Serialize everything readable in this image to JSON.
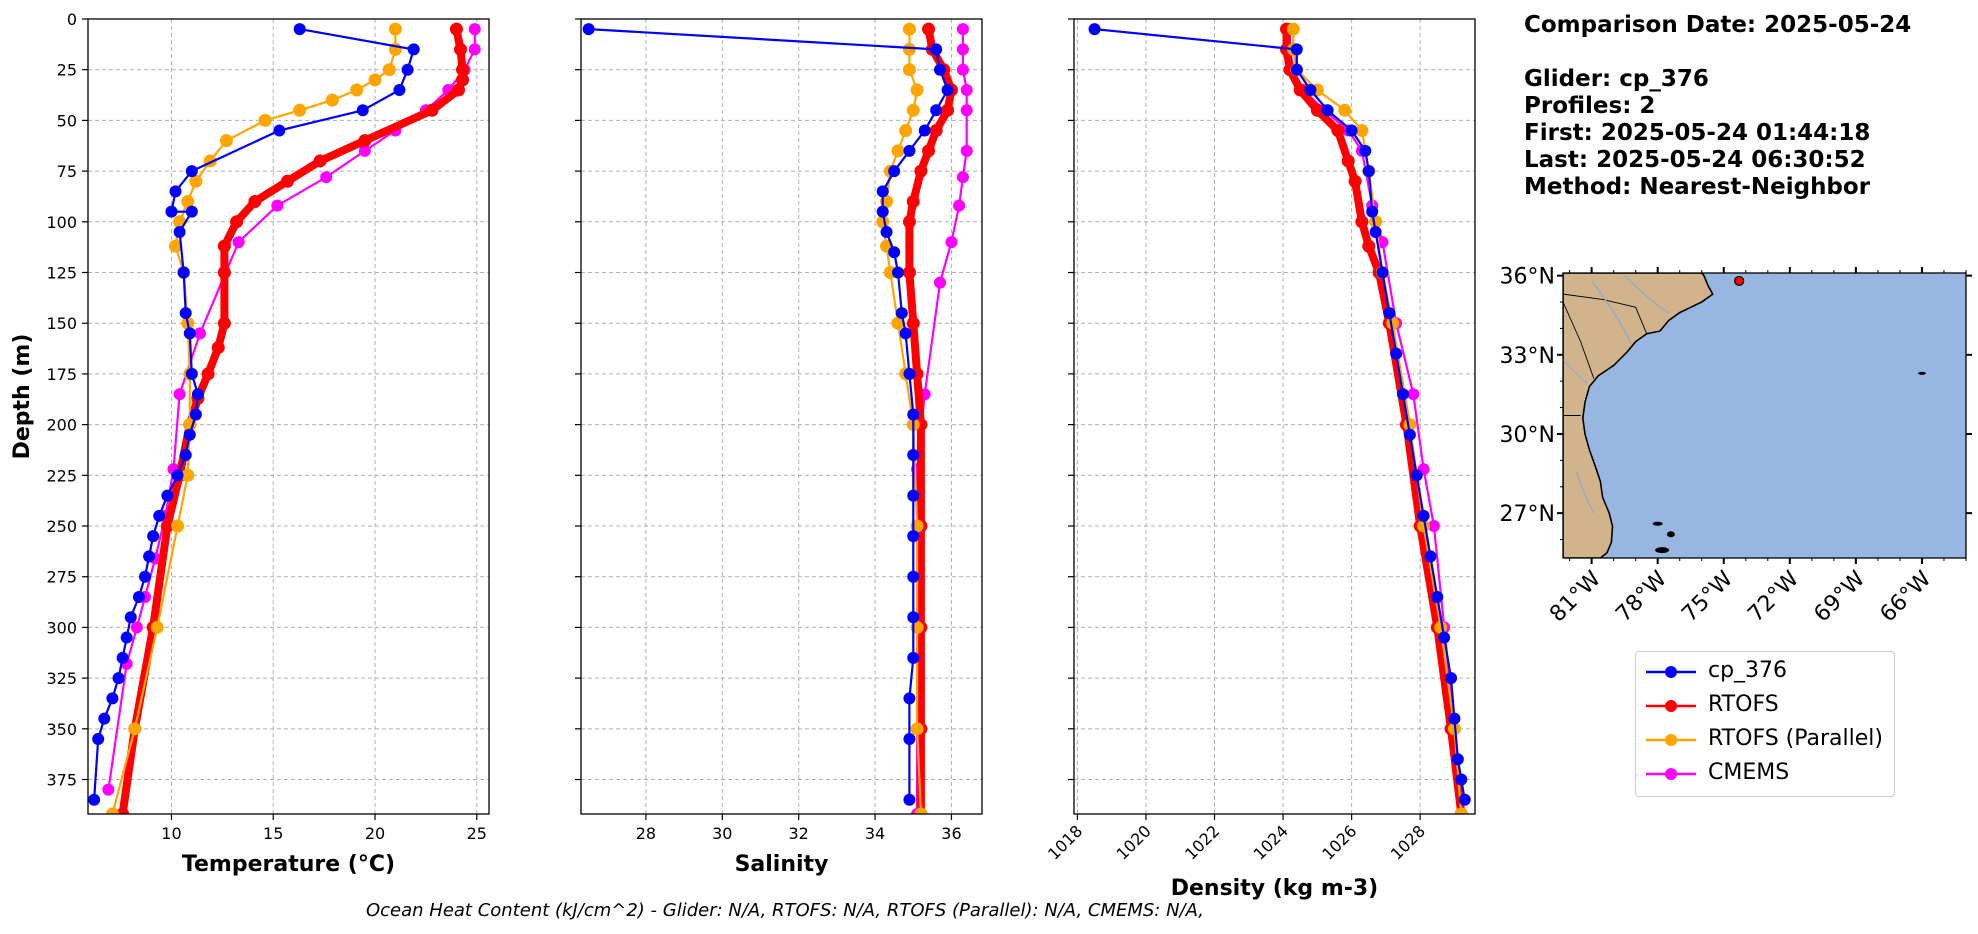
{
  "info": {
    "comparison_date": "Comparison Date: 2025-05-24",
    "glider": "Glider: cp_376",
    "profiles": "Profiles: 2",
    "first": "First: 2025-05-24 01:44:18",
    "last": "Last: 2025-05-24 06:30:52",
    "method": "Method: Nearest-Neighbor"
  },
  "footer": "Ocean Heat Content (kJ/cm^2) - Glider: N/A,  RTOFS: N/A,  RTOFS (Parallel): N/A,  CMEMS: N/A,",
  "legend": [
    {
      "name": "cp_376",
      "color": "#0000ff"
    },
    {
      "name": "RTOFS",
      "color": "#ff0000"
    },
    {
      "name": "RTOFS (Parallel)",
      "color": "#ffa500"
    },
    {
      "name": "CMEMS",
      "color": "#ff00ff"
    }
  ],
  "colors": {
    "glider": "#0000ff",
    "glider_raw": "#00ffff",
    "rtofs": "#ff0000",
    "rtofs_parallel": "#ffa500",
    "cmems": "#ff00ff",
    "land": "#d2b48c",
    "ocean": "#97b6e1"
  },
  "chart_data": [
    {
      "type": "line",
      "xlabel": "Temperature (°C)",
      "ylabel": "Depth (m)",
      "xlim": [
        5.9,
        25.6
      ],
      "ylim": [
        392,
        0
      ],
      "xticks": [
        10,
        15,
        20,
        25
      ],
      "yticks": [
        0,
        25,
        50,
        75,
        100,
        125,
        150,
        175,
        200,
        225,
        250,
        275,
        300,
        325,
        350,
        375
      ],
      "grid": true,
      "series": [
        {
          "name": "cp_376",
          "x": [
            16.3,
            21.9,
            21.6,
            21.2,
            19.4,
            15.3,
            11.0,
            10.2,
            10.0,
            11.0,
            10.4,
            10.6,
            10.7,
            10.9,
            11.0,
            11.3,
            11.2,
            10.9,
            10.7,
            10.3,
            9.8,
            9.4,
            9.1,
            8.9,
            8.7,
            8.4,
            8.0,
            7.8,
            7.6,
            7.4,
            7.1,
            6.7,
            6.4,
            6.2
          ],
          "y": [
            5,
            15,
            25,
            35,
            45,
            55,
            75,
            85,
            95,
            95,
            105,
            125,
            145,
            155,
            175,
            185,
            195,
            205,
            215,
            225,
            235,
            245,
            255,
            265,
            275,
            285,
            295,
            305,
            315,
            325,
            335,
            345,
            355,
            385
          ]
        },
        {
          "name": "RTOFS",
          "x": [
            24.0,
            24.2,
            24.3,
            24.3,
            24.1,
            22.8,
            19.5,
            17.3,
            15.7,
            14.1,
            13.2,
            12.6,
            12.6,
            12.6,
            12.3,
            11.8,
            11.3,
            10.9,
            10.4,
            9.8,
            9.1,
            8.2,
            7.6
          ],
          "y": [
            5,
            15,
            25,
            30,
            35,
            45,
            60,
            70,
            80,
            90,
            100,
            112,
            125,
            150,
            162,
            175,
            187,
            200,
            225,
            250,
            300,
            350,
            392
          ]
        },
        {
          "name": "RTOFS (Parallel)",
          "x": [
            21.0,
            21.0,
            20.7,
            20.0,
            19.1,
            17.9,
            16.3,
            14.6,
            12.7,
            11.9,
            11.2,
            10.8,
            10.4,
            10.2,
            10.6,
            10.8,
            10.9,
            10.9,
            10.8,
            10.3,
            9.3,
            8.2,
            7.1
          ],
          "y": [
            5,
            15,
            25,
            30,
            35,
            40,
            45,
            50,
            60,
            70,
            80,
            90,
            100,
            112,
            125,
            150,
            175,
            200,
            225,
            250,
            300,
            350,
            392
          ]
        },
        {
          "name": "CMEMS",
          "x": [
            24.9,
            24.9,
            24.4,
            23.6,
            22.5,
            21.0,
            19.5,
            17.6,
            15.2,
            13.3,
            11.4,
            10.4,
            10.1,
            9.7,
            9.2,
            8.7,
            8.3,
            7.8,
            6.9
          ],
          "y": [
            5,
            15,
            25,
            35,
            45,
            55,
            65,
            78,
            92,
            110,
            155,
            185,
            222,
            245,
            266,
            285,
            300,
            318,
            380
          ]
        }
      ]
    },
    {
      "type": "line",
      "xlabel": "Salinity",
      "xlim": [
        26.3,
        36.8
      ],
      "ylim": [
        392,
        0
      ],
      "xticks": [
        28,
        30,
        32,
        34,
        36
      ],
      "grid": true,
      "series": [
        {
          "name": "cp_376",
          "x": [
            26.5,
            35.6,
            35.7,
            35.9,
            35.6,
            35.3,
            34.9,
            34.5,
            34.2,
            34.2,
            34.3,
            34.5,
            34.6,
            34.7,
            34.8,
            34.9,
            35.0,
            35.0,
            35.0,
            35.0,
            35.0,
            35.0,
            35.0,
            34.9,
            34.9,
            34.9
          ],
          "y": [
            5,
            15,
            25,
            35,
            45,
            55,
            65,
            75,
            85,
            95,
            105,
            115,
            125,
            145,
            155,
            175,
            195,
            215,
            235,
            255,
            275,
            295,
            315,
            335,
            355,
            385
          ]
        },
        {
          "name": "RTOFS",
          "x": [
            35.4,
            35.5,
            35.8,
            36.0,
            35.9,
            35.6,
            35.4,
            35.2,
            35.0,
            34.9,
            34.9,
            35.0,
            35.1,
            35.2,
            35.2,
            35.2,
            35.2,
            35.2
          ],
          "y": [
            5,
            15,
            25,
            35,
            45,
            55,
            65,
            75,
            90,
            100,
            125,
            150,
            175,
            200,
            250,
            300,
            350,
            392
          ]
        },
        {
          "name": "RTOFS (Parallel)",
          "x": [
            34.9,
            34.9,
            34.9,
            35.1,
            35.0,
            34.8,
            34.6,
            34.4,
            34.3,
            34.2,
            34.3,
            34.4,
            34.6,
            34.8,
            35.0,
            35.1,
            35.1,
            35.1,
            35.2
          ],
          "y": [
            5,
            15,
            25,
            35,
            45,
            55,
            65,
            75,
            90,
            100,
            112,
            125,
            150,
            175,
            200,
            250,
            300,
            350,
            392
          ]
        },
        {
          "name": "CMEMS",
          "x": [
            36.3,
            36.3,
            36.3,
            36.4,
            36.4,
            36.4,
            36.3,
            36.2,
            36.0,
            35.7,
            35.3,
            35.1,
            35.1,
            35.1
          ],
          "y": [
            5,
            15,
            25,
            35,
            45,
            65,
            78,
            92,
            110,
            130,
            185,
            222,
            250,
            392
          ]
        }
      ]
    },
    {
      "type": "line",
      "xlabel": "Density (kg m-3)",
      "xlim": [
        1017.9,
        1029.6
      ],
      "ylim": [
        392,
        0
      ],
      "xticks": [
        1018,
        1020,
        1022,
        1024,
        1026,
        1028
      ],
      "grid": true,
      "series": [
        {
          "name": "cp_376",
          "x": [
            1018.5,
            1024.4,
            1024.4,
            1024.8,
            1025.3,
            1026.0,
            1026.4,
            1026.5,
            1026.6,
            1026.7,
            1026.9,
            1027.1,
            1027.3,
            1027.5,
            1027.7,
            1027.9,
            1028.1,
            1028.3,
            1028.5,
            1028.7,
            1028.9,
            1029.0,
            1029.1,
            1029.2,
            1029.3
          ],
          "y": [
            5,
            15,
            25,
            35,
            45,
            55,
            65,
            75,
            95,
            105,
            125,
            145,
            165,
            185,
            205,
            225,
            245,
            265,
            285,
            305,
            325,
            345,
            365,
            375,
            385
          ]
        },
        {
          "name": "RTOFS",
          "x": [
            1024.1,
            1024.1,
            1024.2,
            1024.5,
            1025.0,
            1025.6,
            1025.9,
            1026.1,
            1026.3,
            1026.5,
            1026.8,
            1027.1,
            1027.6,
            1028.0,
            1028.5,
            1028.9,
            1029.2
          ],
          "y": [
            5,
            15,
            25,
            35,
            45,
            55,
            70,
            80,
            100,
            112,
            125,
            150,
            200,
            250,
            300,
            350,
            392
          ]
        },
        {
          "name": "RTOFS (Parallel)",
          "x": [
            1024.3,
            1024.3,
            1024.4,
            1025.0,
            1025.8,
            1026.3,
            1026.5,
            1026.7,
            1026.9,
            1027.2,
            1027.7,
            1028.1,
            1028.6,
            1029.0,
            1029.2
          ],
          "y": [
            5,
            15,
            25,
            35,
            45,
            55,
            75,
            100,
            125,
            150,
            200,
            250,
            300,
            350,
            392
          ]
        },
        {
          "name": "CMEMS",
          "x": [
            1024.2,
            1024.2,
            1024.3,
            1024.6,
            1025.2,
            1025.9,
            1026.3,
            1026.6,
            1026.9,
            1027.3,
            1027.8,
            1028.1,
            1028.4,
            1028.7,
            1029.0,
            1029.2
          ],
          "y": [
            5,
            15,
            25,
            35,
            45,
            55,
            65,
            92,
            110,
            150,
            185,
            222,
            250,
            300,
            350,
            392
          ]
        }
      ]
    }
  ],
  "map": {
    "lat_ticks": [
      "36°N",
      "33°N",
      "30°N",
      "27°N"
    ],
    "lon_ticks": [
      "81°W",
      "78°W",
      "75°W",
      "72°W",
      "69°W",
      "66°W"
    ],
    "glider_position": {
      "lon": -74.3,
      "lat": 35.8
    }
  }
}
